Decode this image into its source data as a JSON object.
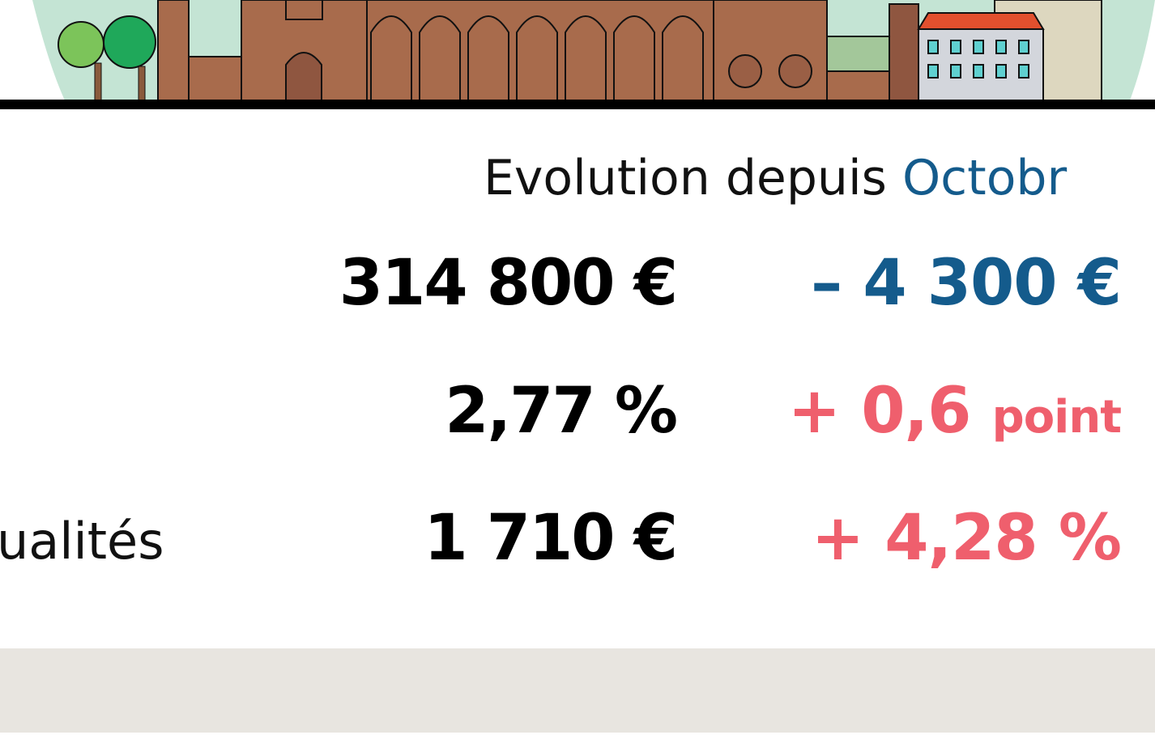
{
  "header": {
    "title": "Evolution depuis",
    "title_highlight": "Octobr"
  },
  "rows": [
    {
      "value": "314 800 €",
      "evolution": "– 4 300 €"
    },
    {
      "value": "2,77 %",
      "evolution": "+ 0,6",
      "evolution_unit": "point"
    },
    {
      "label": "ualités",
      "value": "1 710 €",
      "evolution": "+ 4,28 %"
    }
  ]
}
